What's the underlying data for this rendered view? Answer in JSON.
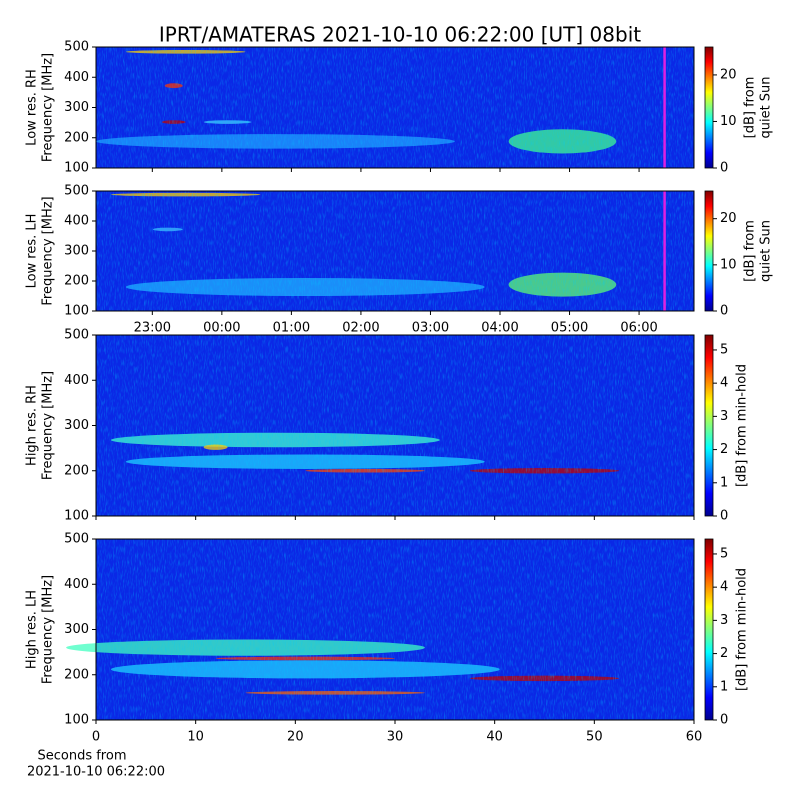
{
  "title": "IPRT/AMATERAS 2021-10-10 06:22:00 [UT]   08bit",
  "chart_data": [
    {
      "type": "heatmap",
      "ylabel": [
        "Low res. RH",
        "Frequency [MHz]"
      ],
      "ylim": [
        100,
        500
      ],
      "yticks": [
        100,
        200,
        300,
        400,
        500
      ],
      "xlim": [
        -1.81,
        6.79
      ],
      "cursor": {
        "x": 6.367,
        "color": "#e020e0"
      },
      "colorbar": {
        "label": [
          "[dB] from",
          "quiet Sun"
        ],
        "lim": [
          0,
          26
        ],
        "ticks": [
          0,
          10,
          20
        ]
      }
    },
    {
      "type": "heatmap",
      "ylabel": [
        "Low res. LH",
        "Frequency [MHz]"
      ],
      "ylim": [
        100,
        500
      ],
      "yticks": [
        100,
        200,
        300,
        400,
        500
      ],
      "xlim": [
        -1.81,
        6.79
      ],
      "cursor": {
        "x": 6.367,
        "color": "#e020e0"
      },
      "xticks": [
        {
          "value": -1,
          "label": "23:00"
        },
        {
          "value": 0,
          "label": "00:00"
        },
        {
          "value": 1,
          "label": "01:00"
        },
        {
          "value": 2,
          "label": "02:00"
        },
        {
          "value": 3,
          "label": "03:00"
        },
        {
          "value": 4,
          "label": "04:00"
        },
        {
          "value": 5,
          "label": "05:00"
        },
        {
          "value": 6,
          "label": "06:00"
        }
      ],
      "colorbar": {
        "label": [
          "[dB] from",
          "quiet Sun"
        ],
        "lim": [
          0,
          26
        ],
        "ticks": [
          0,
          10,
          20
        ]
      }
    },
    {
      "type": "heatmap",
      "ylabel": [
        "High res. RH",
        "Frequency [MHz]"
      ],
      "ylim": [
        100,
        500
      ],
      "yticks": [
        100,
        200,
        300,
        400,
        500
      ],
      "xlim": [
        0,
        60
      ],
      "colorbar": {
        "label": [
          "[dB] from min-hold"
        ],
        "lim": [
          0,
          5.45
        ],
        "ticks": [
          0,
          1,
          2,
          3,
          4,
          5
        ]
      }
    },
    {
      "type": "heatmap",
      "ylabel": [
        "High res. LH",
        "Frequency [MHz]"
      ],
      "ylim": [
        100,
        500
      ],
      "yticks": [
        100,
        200,
        300,
        400,
        500
      ],
      "xlim": [
        0,
        60
      ],
      "xticks": [
        0,
        10,
        20,
        30,
        40,
        50,
        60
      ],
      "xlabel": [
        "Seconds from",
        "2021-10-10 06:22:00"
      ],
      "colorbar": {
        "label": [
          "[dB] from min-hold"
        ],
        "lim": [
          0,
          5.45
        ],
        "ticks": [
          0,
          1,
          2,
          3,
          4,
          5
        ]
      }
    }
  ]
}
